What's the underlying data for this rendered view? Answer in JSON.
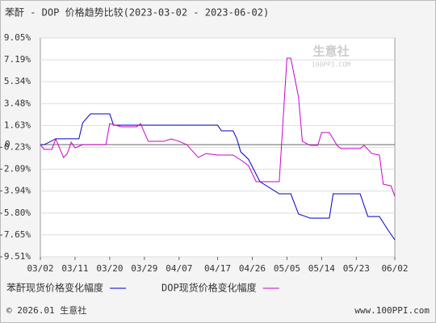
{
  "chart_data": {
    "type": "line",
    "title": "苯酐 - DOP 价格趋势比较(2023-03-02 - 2023-06-02)",
    "watermark": "生意社",
    "watermark_sub": "100PPI.COM",
    "footer_left": "© 2026.01 生意社",
    "footer_right": "www.100PPI.com",
    "categories": [
      "03/02",
      "03/11",
      "03/20",
      "03/29",
      "04/07",
      "04/17",
      "04/26",
      "05/05",
      "05/14",
      "05/23",
      "06/02"
    ],
    "ylim": [
      -9.51,
      9.05
    ],
    "yticks": [
      {
        "value": 9.05,
        "label": "9.05%"
      },
      {
        "value": 7.19,
        "label": "7.19%"
      },
      {
        "value": 5.34,
        "label": "5.34%"
      },
      {
        "value": 3.48,
        "label": "3.48%"
      },
      {
        "value": 1.63,
        "label": "1.63%"
      },
      {
        "value": -0.23,
        "label": "-0.23%"
      },
      {
        "value": -2.09,
        "label": "-2.09%"
      },
      {
        "value": -3.94,
        "label": "-3.94%"
      },
      {
        "value": -5.8,
        "label": "-5.80%"
      },
      {
        "value": -7.65,
        "label": "-7.65%"
      },
      {
        "value": -9.51,
        "label": "-9.51%"
      }
    ],
    "zero_line": {
      "value": 0,
      "label": "0"
    },
    "grid": true,
    "series": [
      {
        "name": "苯酐现货价格变化幅度",
        "color": "#0000cc",
        "x": [
          "03/02",
          "03/03",
          "03/06",
          "03/12",
          "03/13",
          "03/15",
          "03/20",
          "03/21",
          "04/17",
          "04/18",
          "04/21",
          "04/22",
          "04/23",
          "04/25",
          "04/28",
          "05/03",
          "05/06",
          "05/08",
          "05/11",
          "05/16",
          "05/17",
          "05/24",
          "05/26",
          "05/29",
          "05/31",
          "06/02"
        ],
        "values": [
          0,
          0,
          0.5,
          0.5,
          1.86,
          2.61,
          2.61,
          1.65,
          1.65,
          1.17,
          1.17,
          0.5,
          -0.61,
          -1.23,
          -3.14,
          -4.17,
          -4.17,
          -5.88,
          -6.23,
          -6.23,
          -4.17,
          -4.17,
          -6.09,
          -6.09,
          -7.12,
          -8.08
        ]
      },
      {
        "name": "DOP现货价格变化幅度",
        "color": "#cc00cc",
        "x": [
          "03/02",
          "03/03",
          "03/05",
          "03/06",
          "03/08",
          "03/09",
          "03/10",
          "03/11",
          "03/13",
          "03/19",
          "03/20",
          "03/23",
          "03/27",
          "03/28",
          "03/30",
          "04/03",
          "04/05",
          "04/07",
          "04/09",
          "04/12",
          "04/14",
          "04/17",
          "04/21",
          "04/23",
          "04/25",
          "04/27",
          "05/03",
          "05/05",
          "05/06",
          "05/08",
          "05/09",
          "05/11",
          "05/13",
          "05/14",
          "05/16",
          "05/18",
          "05/19",
          "05/24",
          "05/25",
          "05/27",
          "05/29",
          "05/30",
          "06/01",
          "06/02"
        ],
        "values": [
          0,
          -0.4,
          -0.4,
          0.49,
          -1.09,
          -0.75,
          0.21,
          -0.27,
          0,
          0,
          1.79,
          1.52,
          1.52,
          1.79,
          0.28,
          0.28,
          0.49,
          0.28,
          0,
          -1.09,
          -0.75,
          -0.88,
          -0.88,
          -1.29,
          -1.77,
          -3.14,
          -3.14,
          7.34,
          7.34,
          4.05,
          0.28,
          -0.06,
          -0.06,
          1.03,
          1.03,
          -0.06,
          -0.33,
          -0.33,
          -0.06,
          -0.75,
          -0.88,
          -3.35,
          -3.49,
          -4.38
        ]
      }
    ]
  }
}
